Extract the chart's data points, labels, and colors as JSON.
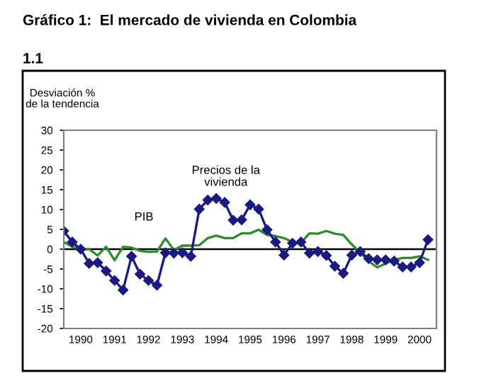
{
  "chart_data": {
    "type": "line",
    "title": "Gráfico 1:  El mercado de vivienda en Colombia",
    "subtitle": "1.1",
    "ylabel": "Desviación %\nde la tendencia",
    "x": [
      1990.0,
      1990.25,
      1990.5,
      1990.75,
      1991.0,
      1991.25,
      1991.5,
      1991.75,
      1992.0,
      1992.25,
      1992.5,
      1992.75,
      1993.0,
      1993.25,
      1993.5,
      1993.75,
      1994.0,
      1994.25,
      1994.5,
      1994.75,
      1995.0,
      1995.25,
      1995.5,
      1995.75,
      1996.0,
      1996.25,
      1996.5,
      1996.75,
      1997.0,
      1997.25,
      1997.5,
      1997.75,
      1998.0,
      1998.25,
      1998.5,
      1998.75,
      1999.0,
      1999.25,
      1999.5,
      1999.75,
      2000.0,
      2000.25,
      2000.5,
      2000.75
    ],
    "series": [
      {
        "color": "#2e8b2e",
        "marker": "none",
        "values": [
          1.8,
          0.6,
          0,
          0,
          -1.6,
          0.6,
          -2.8,
          0.6,
          0.4,
          -0.4,
          -0.7,
          -0.6,
          2.7,
          -0.2,
          0.9,
          0.9,
          1,
          2.8,
          3.4,
          2.8,
          2.8,
          4,
          4,
          4.9,
          3.6,
          3.3,
          2.8,
          1.8,
          1.6,
          4,
          3.9,
          4.6,
          3.9,
          3.6,
          1.2,
          -0.9,
          -3,
          -4.6,
          -3.6,
          -2.7,
          -2.2,
          -2.2,
          -1.8,
          -2.7
        ]
      },
      {
        "color": "#1a1a80",
        "marker": "diamond",
        "values": [
          4.6,
          1.8,
          0,
          -3.6,
          -3.4,
          -5.5,
          -7.9,
          -10.3,
          -1.8,
          -6.3,
          -7.9,
          -9.1,
          -0.9,
          -1,
          -0.9,
          -1.8,
          10.1,
          12.4,
          12.8,
          11.8,
          7.3,
          7.4,
          11.2,
          10.1,
          4.9,
          1.8,
          -1.5,
          1.5,
          1.8,
          -1,
          -0.6,
          -1.6,
          -4.3,
          -6.1,
          -1.5,
          -0.6,
          -2.4,
          -2.7,
          -2.7,
          -3,
          -4.5,
          -4.5,
          -3.4,
          2.4
        ]
      }
    ],
    "annotations": [
      "PIB",
      "Precios de la\nvivienda"
    ],
    "ref_lines": [
      {
        "axis": "y",
        "value": 0,
        "color": "#000000"
      }
    ],
    "xlim": [
      1990,
      2001
    ],
    "ylim": [
      -20,
      30
    ],
    "xticks": [
      {
        "value": 1990.5,
        "label": "1990"
      },
      {
        "value": 1991.5,
        "label": "1991"
      },
      {
        "value": 1992.5,
        "label": "1992"
      },
      {
        "value": 1993.5,
        "label": "1993"
      },
      {
        "value": 1994.5,
        "label": "1994"
      },
      {
        "value": 1995.5,
        "label": "1995"
      },
      {
        "value": 1996.5,
        "label": "1996"
      },
      {
        "value": 1997.5,
        "label": "1997"
      },
      {
        "value": 1998.5,
        "label": "1998"
      },
      {
        "value": 1999.5,
        "label": "1999"
      },
      {
        "value": 2000.5,
        "label": "2000"
      }
    ],
    "yticks": [
      -20,
      -15,
      -10,
      -5,
      0,
      5,
      10,
      15,
      20,
      25,
      30
    ],
    "grid": false,
    "legend": false,
    "line_style": "solid"
  }
}
